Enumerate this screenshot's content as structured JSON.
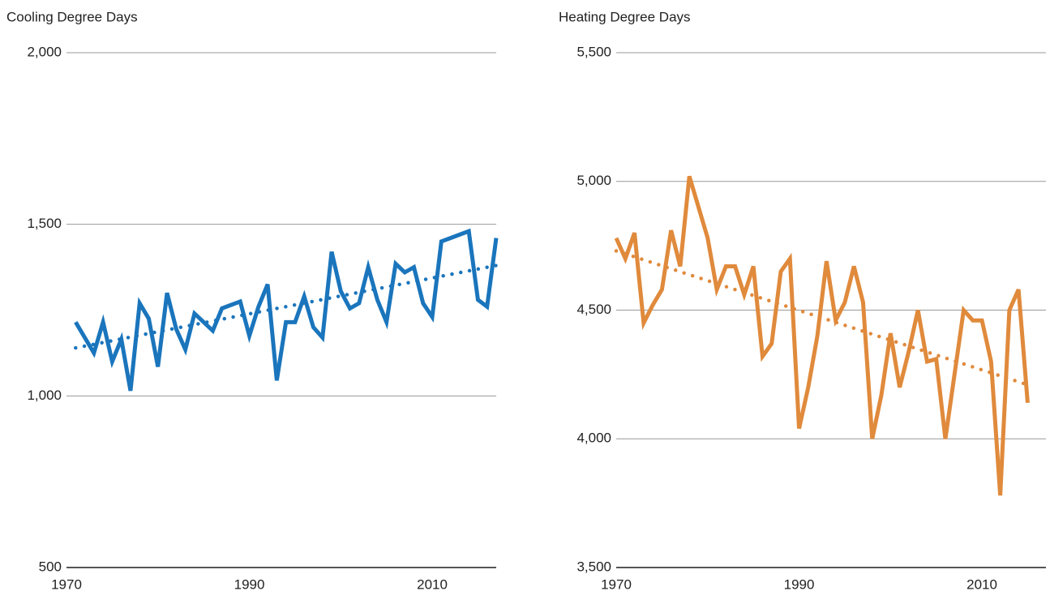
{
  "chart_data": [
    {
      "type": "line",
      "title": "Cooling Degree Days",
      "x": [
        1971,
        1972,
        1973,
        1974,
        1975,
        1976,
        1977,
        1978,
        1979,
        1980,
        1981,
        1982,
        1983,
        1984,
        1985,
        1986,
        1987,
        1988,
        1989,
        1990,
        1991,
        1992,
        1993,
        1994,
        1995,
        1996,
        1997,
        1998,
        1999,
        2000,
        2001,
        2002,
        2003,
        2004,
        2005,
        2006,
        2007,
        2008,
        2009,
        2010,
        2011,
        2012,
        2013,
        2014,
        2015,
        2016,
        2017
      ],
      "series": [
        {
          "color": "#1a75bc",
          "values": [
            1215,
            1170,
            1125,
            1215,
            1100,
            1165,
            1015,
            1270,
            1225,
            1085,
            1300,
            1195,
            1135,
            1240,
            1215,
            1190,
            1255,
            1265,
            1275,
            1175,
            1260,
            1325,
            1045,
            1215,
            1215,
            1290,
            1200,
            1170,
            1420,
            1305,
            1255,
            1270,
            1375,
            1280,
            1215,
            1385,
            1360,
            1375,
            1270,
            1230,
            1450,
            1460,
            1470,
            1480,
            1280,
            1260,
            1460
          ]
        }
      ],
      "trend": {
        "x": [
          1971,
          2017
        ],
        "values": [
          1140,
          1380
        ],
        "color": "#1a75bc",
        "style": "dotted"
      },
      "xlim": [
        1970,
        2017
      ],
      "xticks": [
        1970,
        1990,
        2010
      ],
      "ylim": [
        500,
        2000
      ],
      "yticks": [
        {
          "value": 500,
          "label": "500"
        },
        {
          "value": 1000,
          "label": "1,000"
        },
        {
          "value": 1500,
          "label": "1,500"
        },
        {
          "value": 2000,
          "label": "2,000"
        }
      ],
      "grid": true
    },
    {
      "type": "line",
      "title": "Heating Degree Days",
      "x": [
        1970,
        1971,
        1972,
        1973,
        1974,
        1975,
        1976,
        1977,
        1978,
        1979,
        1980,
        1981,
        1982,
        1983,
        1984,
        1985,
        1986,
        1987,
        1988,
        1989,
        1990,
        1991,
        1992,
        1993,
        1994,
        1995,
        1996,
        1997,
        1998,
        1999,
        2000,
        2001,
        2002,
        2003,
        2004,
        2005,
        2006,
        2007,
        2008,
        2009,
        2010,
        2011,
        2012,
        2013,
        2014,
        2015
      ],
      "series": [
        {
          "color": "#e08a3c",
          "values": [
            4780,
            4700,
            4800,
            4450,
            4520,
            4580,
            4810,
            4670,
            5020,
            4900,
            4780,
            4580,
            4670,
            4670,
            4560,
            4670,
            4320,
            4370,
            4650,
            4700,
            4040,
            4200,
            4400,
            4690,
            4460,
            4530,
            4670,
            4530,
            4000,
            4170,
            4410,
            4200,
            4340,
            4500,
            4300,
            4310,
            4000,
            4250,
            4500,
            4460,
            4460,
            4300,
            3780,
            4500,
            4580,
            4140
          ]
        }
      ],
      "trend": {
        "x": [
          1970,
          2015
        ],
        "values": [
          4730,
          4210
        ],
        "color": "#e08a3c",
        "style": "dotted"
      },
      "xlim": [
        1970,
        2017
      ],
      "xticks": [
        1970,
        1990,
        2010
      ],
      "ylim": [
        3500,
        5500
      ],
      "yticks": [
        {
          "value": 3500,
          "label": "3,500"
        },
        {
          "value": 4000,
          "label": "4,000"
        },
        {
          "value": 4500,
          "label": "4,500"
        },
        {
          "value": 5000,
          "label": "5,000"
        },
        {
          "value": 5500,
          "label": "5,500"
        }
      ],
      "grid": true
    }
  ]
}
